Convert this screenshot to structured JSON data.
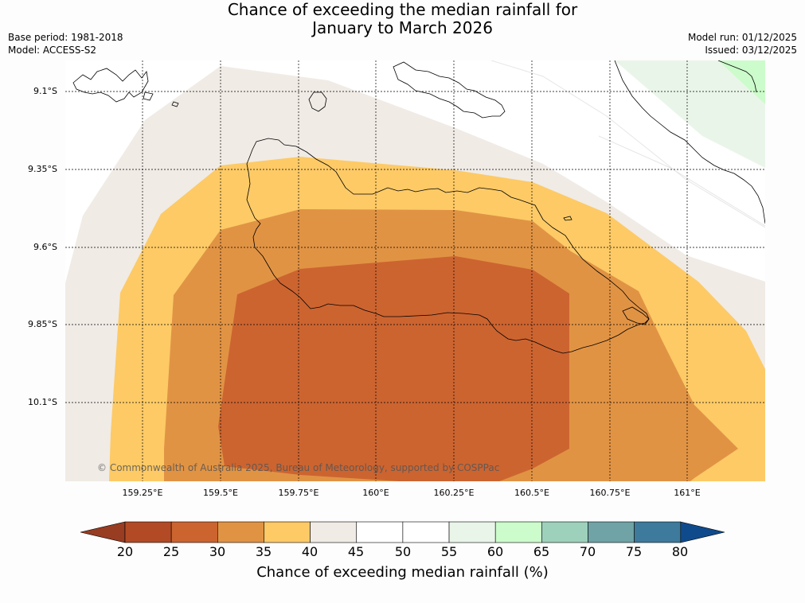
{
  "title": {
    "line1": "Chance of exceeding the median rainfall for",
    "line2": "January to March 2026"
  },
  "meta": {
    "base_period": "Base period: 1981-2018",
    "model": "Model: ACCESS-S2",
    "model_run": "Model run: 01/12/2025",
    "issued": "Issued: 03/12/2025"
  },
  "map": {
    "lat_labels": [
      "9.1°S",
      "9.35°S",
      "9.6°S",
      "9.85°S",
      "10.1°S"
    ],
    "lon_labels": [
      "159.25°E",
      "159.5°E",
      "159.75°E",
      "160°E",
      "160.25°E",
      "160.5°E",
      "160.75°E",
      "161°E"
    ],
    "copyright": "© Commonwealth of Australia 2025, Bureau of Meteorology, supported by COSPPac",
    "fill_colors": {
      "c35_40": "#fdca66",
      "c40_45": "#f0ebe5",
      "c30_35": "#e19344",
      "c25_30": "#cc6430",
      "c55_60": "#eaf5e9",
      "c60_65": "#ccfccb"
    }
  },
  "colorbar": {
    "colors": [
      "#983c22",
      "#b24b25",
      "#cc6430",
      "#e19344",
      "#fdca66",
      "#f0ebe5",
      "#ffffff",
      "#ffffff",
      "#eaf5e9",
      "#ccfccb",
      "#9dd1bb",
      "#6fa3a5",
      "#3d7a9c",
      "#0f4b8c"
    ],
    "ticks": [
      "20",
      "25",
      "30",
      "35",
      "40",
      "45",
      "50",
      "55",
      "60",
      "65",
      "70",
      "75",
      "80"
    ],
    "label": "Chance of exceeding median rainfall (%)"
  }
}
